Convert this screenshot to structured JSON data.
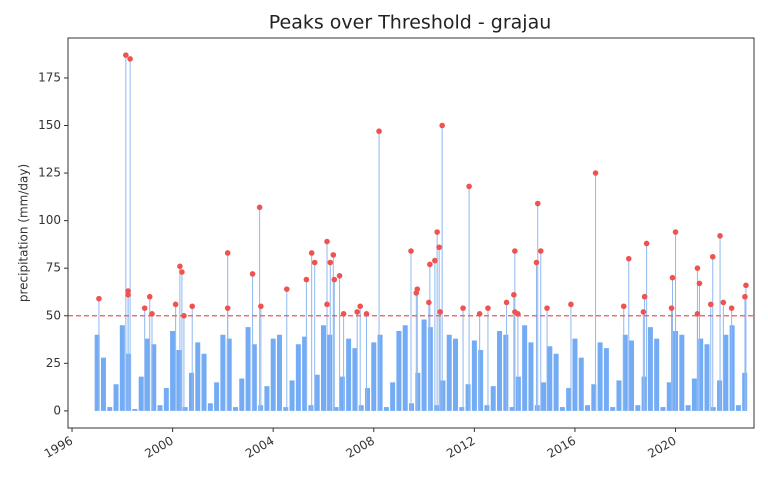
{
  "chart_data": {
    "type": "peaks",
    "title": "Peaks over Threshold - grajau",
    "y_label": "precipitation (mm/day)",
    "xlim": [
      1995.84,
      2023.12
    ],
    "xticks": [
      1996,
      2000,
      2004,
      2008,
      2012,
      2016,
      2020
    ],
    "ylim": [
      -9,
      196
    ],
    "yticks": [
      0,
      25,
      50,
      75,
      100,
      125,
      150,
      175
    ],
    "threshold": 50,
    "threshold_color": "#e8595a",
    "series": [
      {
        "color": "#5b9cf2",
        "x": [
          1997.0,
          1997.25,
          1997.5,
          1997.75,
          1998.0,
          1998.25,
          1998.5,
          1998.75,
          1999.0,
          1999.25,
          1999.5,
          1999.75,
          2000.0,
          2000.25,
          2000.5,
          2000.75,
          2001.0,
          2001.25,
          2001.5,
          2001.75,
          2002.0,
          2002.25,
          2002.5,
          2002.75,
          2003.0,
          2003.25,
          2003.5,
          2003.75,
          2004.0,
          2004.25,
          2004.5,
          2004.75,
          2005.0,
          2005.25,
          2005.5,
          2005.75,
          2006.0,
          2006.25,
          2006.5,
          2006.75,
          2007.0,
          2007.25,
          2007.5,
          2007.75,
          2008.0,
          2008.25,
          2008.5,
          2008.75,
          2009.0,
          2009.25,
          2009.5,
          2009.75,
          2010.0,
          2010.25,
          2010.5,
          2010.75,
          2011.0,
          2011.25,
          2011.5,
          2011.75,
          2012.0,
          2012.25,
          2012.5,
          2012.75,
          2013.0,
          2013.25,
          2013.5,
          2013.75,
          2014.0,
          2014.25,
          2014.5,
          2014.75,
          2015.0,
          2015.25,
          2015.5,
          2015.75,
          2016.0,
          2016.25,
          2016.5,
          2016.75,
          2017.0,
          2017.25,
          2017.5,
          2017.75,
          2018.0,
          2018.25,
          2018.5,
          2018.75,
          2019.0,
          2019.25,
          2019.5,
          2019.75,
          2020.0,
          2020.25,
          2020.5,
          2020.75,
          2021.0,
          2021.25,
          2021.5,
          2021.75,
          2022.0,
          2022.25,
          2022.5,
          2022.75
        ],
        "values": [
          40,
          28,
          2,
          14,
          45,
          30,
          1,
          18,
          38,
          35,
          3,
          12,
          42,
          32,
          2,
          20,
          36,
          30,
          4,
          15,
          40,
          38,
          2,
          17,
          44,
          35,
          3,
          13,
          38,
          40,
          2,
          16,
          35,
          39,
          3,
          19,
          45,
          40,
          2,
          18,
          38,
          33,
          3,
          12,
          36,
          40,
          2,
          15,
          42,
          45,
          4,
          20,
          48,
          44,
          3,
          16,
          40,
          38,
          2,
          14,
          37,
          32,
          3,
          13,
          42,
          40,
          2,
          18,
          45,
          36,
          3,
          15,
          34,
          30,
          2,
          12,
          38,
          28,
          3,
          14,
          36,
          33,
          2,
          16,
          40,
          37,
          3,
          18,
          44,
          38,
          2,
          15,
          42,
          40,
          3,
          17,
          38,
          35,
          2,
          16,
          40,
          45,
          3,
          20
        ]
      },
      {
        "color": "#ef5350",
        "stem_color": "#8fb8f0",
        "x": [
          1997.07,
          1998.14,
          1998.23,
          1998.23,
          1998.31,
          1998.89,
          1999.09,
          1999.18,
          2000.12,
          2000.29,
          2000.37,
          2000.45,
          2000.78,
          2002.19,
          2002.19,
          2003.18,
          2003.46,
          2003.51,
          2004.54,
          2005.32,
          2005.53,
          2005.65,
          2006.14,
          2006.14,
          2006.27,
          2006.39,
          2006.43,
          2006.64,
          2006.8,
          2007.34,
          2007.46,
          2007.71,
          2008.21,
          2009.48,
          2009.69,
          2009.73,
          2010.19,
          2010.23,
          2010.43,
          2010.52,
          2010.6,
          2010.64,
          2010.72,
          2011.55,
          2011.79,
          2012.21,
          2012.54,
          2013.28,
          2013.57,
          2013.61,
          2013.61,
          2013.73,
          2014.47,
          2014.52,
          2014.64,
          2014.89,
          2015.84,
          2016.82,
          2017.94,
          2018.14,
          2018.72,
          2018.77,
          2018.85,
          2019.84,
          2019.88,
          2020.0,
          2020.87,
          2020.87,
          2020.95,
          2021.4,
          2021.48,
          2021.77,
          2021.9,
          2022.23,
          2022.76,
          2022.8
        ],
        "values": [
          59,
          187,
          63,
          61,
          185,
          54,
          60,
          51,
          56,
          76,
          73,
          50,
          55,
          83,
          54,
          72,
          107,
          55,
          64,
          69,
          83,
          78,
          56,
          89,
          78,
          82,
          69,
          71,
          51,
          52,
          55,
          51,
          147,
          84,
          62,
          64,
          57,
          77,
          79,
          94,
          86,
          52,
          150,
          54,
          118,
          51,
          54,
          57,
          61,
          84,
          52,
          51,
          78,
          109,
          84,
          54,
          56,
          125,
          55,
          80,
          52,
          60,
          88,
          54,
          70,
          94,
          51,
          75,
          67,
          56,
          81,
          92,
          57,
          54,
          60,
          66
        ]
      }
    ]
  }
}
